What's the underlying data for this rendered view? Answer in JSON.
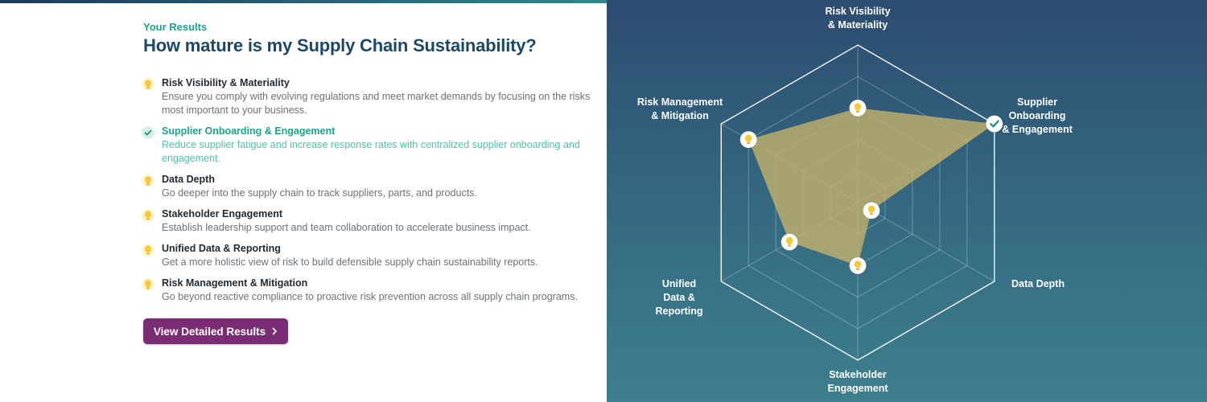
{
  "header": {
    "eyebrow": "Your Results",
    "title": "How mature is my Supply Chain Sustainability?"
  },
  "items": [
    {
      "title": "Risk Visibility & Materiality",
      "desc": "Ensure you comply with evolving regulations and meet market demands by focusing on the risks most important to your business.",
      "icon": "lightbulb-icon",
      "active": false
    },
    {
      "title": "Supplier Onboarding & Engagement",
      "desc": "Reduce supplier fatigue and increase response rates with centralized supplier onboarding and engagement.",
      "icon": "check-icon",
      "active": true
    },
    {
      "title": "Data Depth",
      "desc": "Go deeper into the supply chain to track suppliers, parts, and products.",
      "icon": "lightbulb-icon",
      "active": false
    },
    {
      "title": "Stakeholder Engagement",
      "desc": "Establish leadership support and team collaboration to accelerate business impact.",
      "icon": "lightbulb-icon",
      "active": false
    },
    {
      "title": "Unified Data & Reporting",
      "desc": "Get a more holistic view of risk to build defensible supply chain sustainability reports.",
      "icon": "lightbulb-icon",
      "active": false
    },
    {
      "title": "Risk Management & Mitigation",
      "desc": "Go beyond reactive compliance to proactive risk prevention across all supply chain programs.",
      "icon": "lightbulb-icon",
      "active": false
    }
  ],
  "button": {
    "label": "View Detailed Results",
    "icon": "chevron-right-icon"
  },
  "radar": {
    "axes": [
      "Risk Visibility\n& Materiality",
      "Supplier\nOnboarding\n& Engagement",
      "Data Depth",
      "Stakeholder\nEngagement",
      "Unified\nData &\nReporting",
      "Risk Management\n& Mitigation"
    ],
    "levels": 5,
    "scores": [
      0.6,
      1.0,
      0.1,
      0.4,
      0.5,
      0.8
    ],
    "colors": {
      "fill": "#c8b46a",
      "line": "#ffffff",
      "marker": "#f4c93a"
    }
  }
}
